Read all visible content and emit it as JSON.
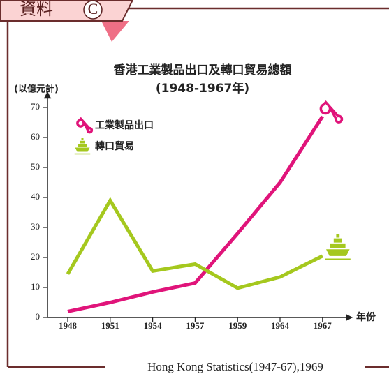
{
  "header": {
    "label": "資料",
    "letter": "C"
  },
  "chart_data": {
    "type": "line",
    "title": "香港工業製品出口及轉口貿易總額",
    "subtitle": "(1948-1967年)",
    "y_label": "(以億元計)",
    "x_label": "年份",
    "source": "Hong Kong Statistics(1947-67),1969",
    "categories": [
      "1948",
      "1951",
      "1954",
      "1957",
      "1959",
      "1964",
      "1967"
    ],
    "series": [
      {
        "name": "工業製品出口",
        "color": "#e0147a",
        "values": [
          2,
          5,
          8.5,
          11.5,
          28,
          45,
          67
        ]
      },
      {
        "name": "轉口貿易",
        "color": "#a5c81e",
        "values": [
          14.5,
          39,
          15.5,
          17.8,
          9.8,
          13.5,
          20.5
        ]
      }
    ],
    "ylim": [
      0,
      70
    ],
    "yticks": [
      0,
      10,
      20,
      30,
      40,
      50,
      60,
      70
    ]
  }
}
